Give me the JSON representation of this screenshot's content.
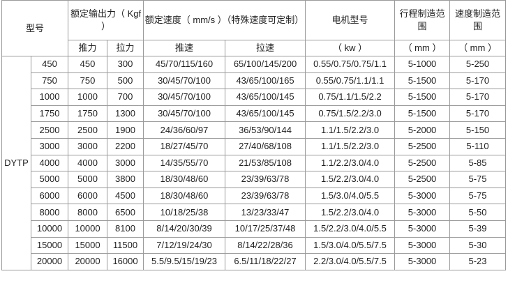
{
  "header": {
    "model": "型号",
    "force": "额定输出力（ Kgf ）",
    "speed": "额定速度（ mm/s ）（特殊速度可定制）",
    "motor": "电机型号",
    "stroke": "行程制造范围",
    "speed_range": "速度制造范围",
    "push": "推力",
    "pull": "拉力",
    "push_speed": "推速",
    "pull_speed": "拉速",
    "kw": "（ kw ）",
    "stroke_unit": "（ mm ）",
    "speed_range_unit": "（ mm ）"
  },
  "series": "DYTP",
  "rows": [
    [
      "450",
      "450",
      "300",
      "45/70/115/160",
      "65/100/145/200",
      "0.55/0.75/0.75/1.1",
      "5-1000",
      "5-250"
    ],
    [
      "750",
      "750",
      "500",
      "30/45/70/100",
      "43/65/100/165",
      "0.55/0.75/1.1/1.1",
      "5-1500",
      "5-170"
    ],
    [
      "1000",
      "1000",
      "700",
      "30/45/70/100",
      "43/65/100/145",
      "0.75/1.1/1.5/2.2",
      "5-1500",
      "5-170"
    ],
    [
      "1750",
      "1750",
      "1300",
      "30/45/70/100",
      "43/65/100/145",
      "0.75/1.5/2.2/3.0",
      "5-1500",
      "5-170"
    ],
    [
      "2500",
      "2500",
      "1900",
      "24/36/60/97",
      "36/53/90/144",
      "1.1/1.5/2.2/3.0",
      "5-2000",
      "5-150"
    ],
    [
      "3000",
      "3000",
      "2200",
      "18/27/45/70",
      "27/40/68/108",
      "1.1/1.5/2.2/3.0",
      "5-2500",
      "5-110"
    ],
    [
      "4000",
      "4000",
      "3000",
      "14/35/55/70",
      "21/53/85/108",
      "1.1/2.2/3.0/4.0",
      "5-2500",
      "5-85"
    ],
    [
      "5000",
      "5000",
      "3800",
      "18/30/48/60",
      "23/39/63/78",
      "1.5/2.2/3.0/4.0",
      "5-2500",
      "5-75"
    ],
    [
      "6000",
      "6000",
      "4500",
      "18/30/48/60",
      "23/39/63/78",
      "1.5/3.0/4.0/5.5",
      "5-3000",
      "5-75"
    ],
    [
      "8000",
      "8000",
      "6500",
      "10/18/25/38",
      "13/23/33/47",
      "1.5/2.2/3.0/4.0",
      "5-3000",
      "5-50"
    ],
    [
      "10000",
      "10000",
      "8100",
      "8/14/20/30/39",
      "10/17/25/37/48",
      "1.5/2.2/3.0/4.0/5.5",
      "5-3000",
      "5-39"
    ],
    [
      "15000",
      "15000",
      "11500",
      "7/12/19/24/30",
      "8/14/22/28/36",
      "1.5/3.0/4.0/5.5/7.5",
      "5-3000",
      "5-30"
    ],
    [
      "20000",
      "20000",
      "16000",
      "5.5/9.5/15/19/23",
      "6.5/11/18/22/27",
      "2.2/3.0/4.0/5.5/7.5",
      "5-3000",
      "5-23"
    ]
  ]
}
